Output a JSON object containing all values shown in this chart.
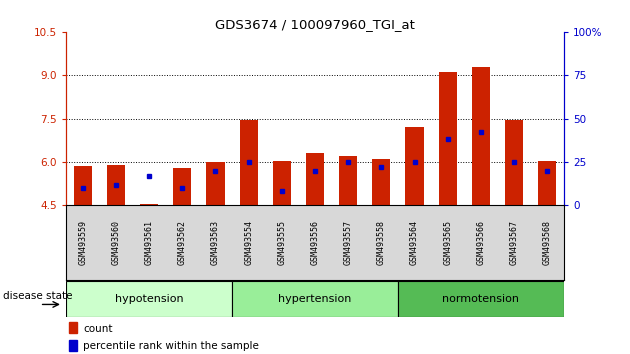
{
  "title": "GDS3674 / 100097960_TGI_at",
  "samples": [
    "GSM493559",
    "GSM493560",
    "GSM493561",
    "GSM493562",
    "GSM493563",
    "GSM493554",
    "GSM493555",
    "GSM493556",
    "GSM493557",
    "GSM493558",
    "GSM493564",
    "GSM493565",
    "GSM493566",
    "GSM493567",
    "GSM493568"
  ],
  "count_values": [
    5.85,
    5.9,
    4.55,
    5.8,
    6.0,
    7.45,
    6.05,
    6.3,
    6.2,
    6.1,
    7.2,
    9.1,
    9.3,
    7.45,
    6.05
  ],
  "percentile_values": [
    10,
    12,
    17,
    10,
    20,
    25,
    8,
    20,
    25,
    22,
    25,
    38,
    42,
    25,
    20
  ],
  "groups": [
    {
      "label": "hypotension",
      "indices": [
        0,
        1,
        2,
        3,
        4
      ],
      "color": "#ccffcc"
    },
    {
      "label": "hypertension",
      "indices": [
        5,
        6,
        7,
        8,
        9
      ],
      "color": "#99ee99"
    },
    {
      "label": "normotension",
      "indices": [
        10,
        11,
        12,
        13,
        14
      ],
      "color": "#55bb55"
    }
  ],
  "ymin": 4.5,
  "ymax": 10.5,
  "yticks": [
    4.5,
    6.0,
    7.5,
    9.0,
    10.5
  ],
  "right_yticks": [
    0,
    25,
    50,
    75,
    100
  ],
  "bar_color": "#cc2200",
  "percentile_color": "#0000cc",
  "background_color": "#ffffff",
  "bar_width": 0.55,
  "disease_state_label": "disease state"
}
